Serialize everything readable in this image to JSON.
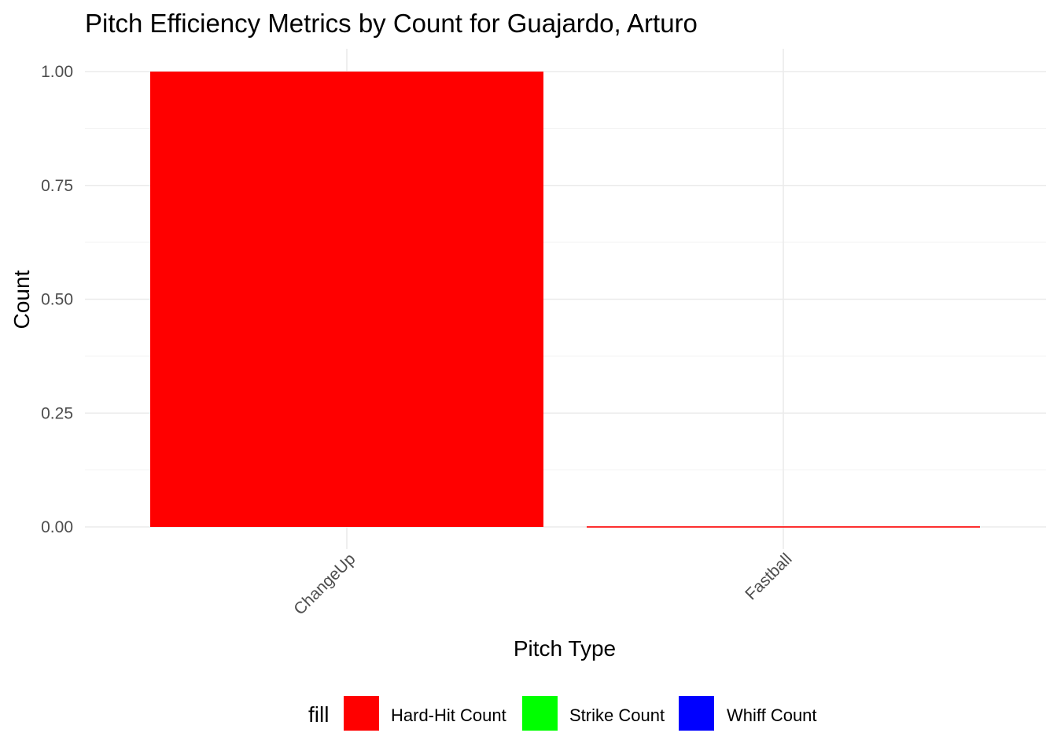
{
  "chart_data": {
    "type": "bar",
    "title": "Pitch Efficiency Metrics by Count for Guajardo, Arturo",
    "xlabel": "Pitch Type",
    "ylabel": "Count",
    "categories": [
      "ChangeUp",
      "Fastball"
    ],
    "series": [
      {
        "name": "Hard-Hit Count",
        "color": "#ff0000",
        "values": [
          1,
          0
        ]
      },
      {
        "name": "Strike Count",
        "color": "#00ff00",
        "values": [
          0,
          0
        ]
      },
      {
        "name": "Whiff Count",
        "color": "#0000ff",
        "values": [
          0,
          0
        ]
      }
    ],
    "ylim": [
      0,
      1
    ],
    "y_ticks": [
      "0.00",
      "0.25",
      "0.50",
      "0.75",
      "1.00"
    ],
    "grid": true,
    "legend": {
      "title": "fill",
      "position": "bottom"
    }
  }
}
